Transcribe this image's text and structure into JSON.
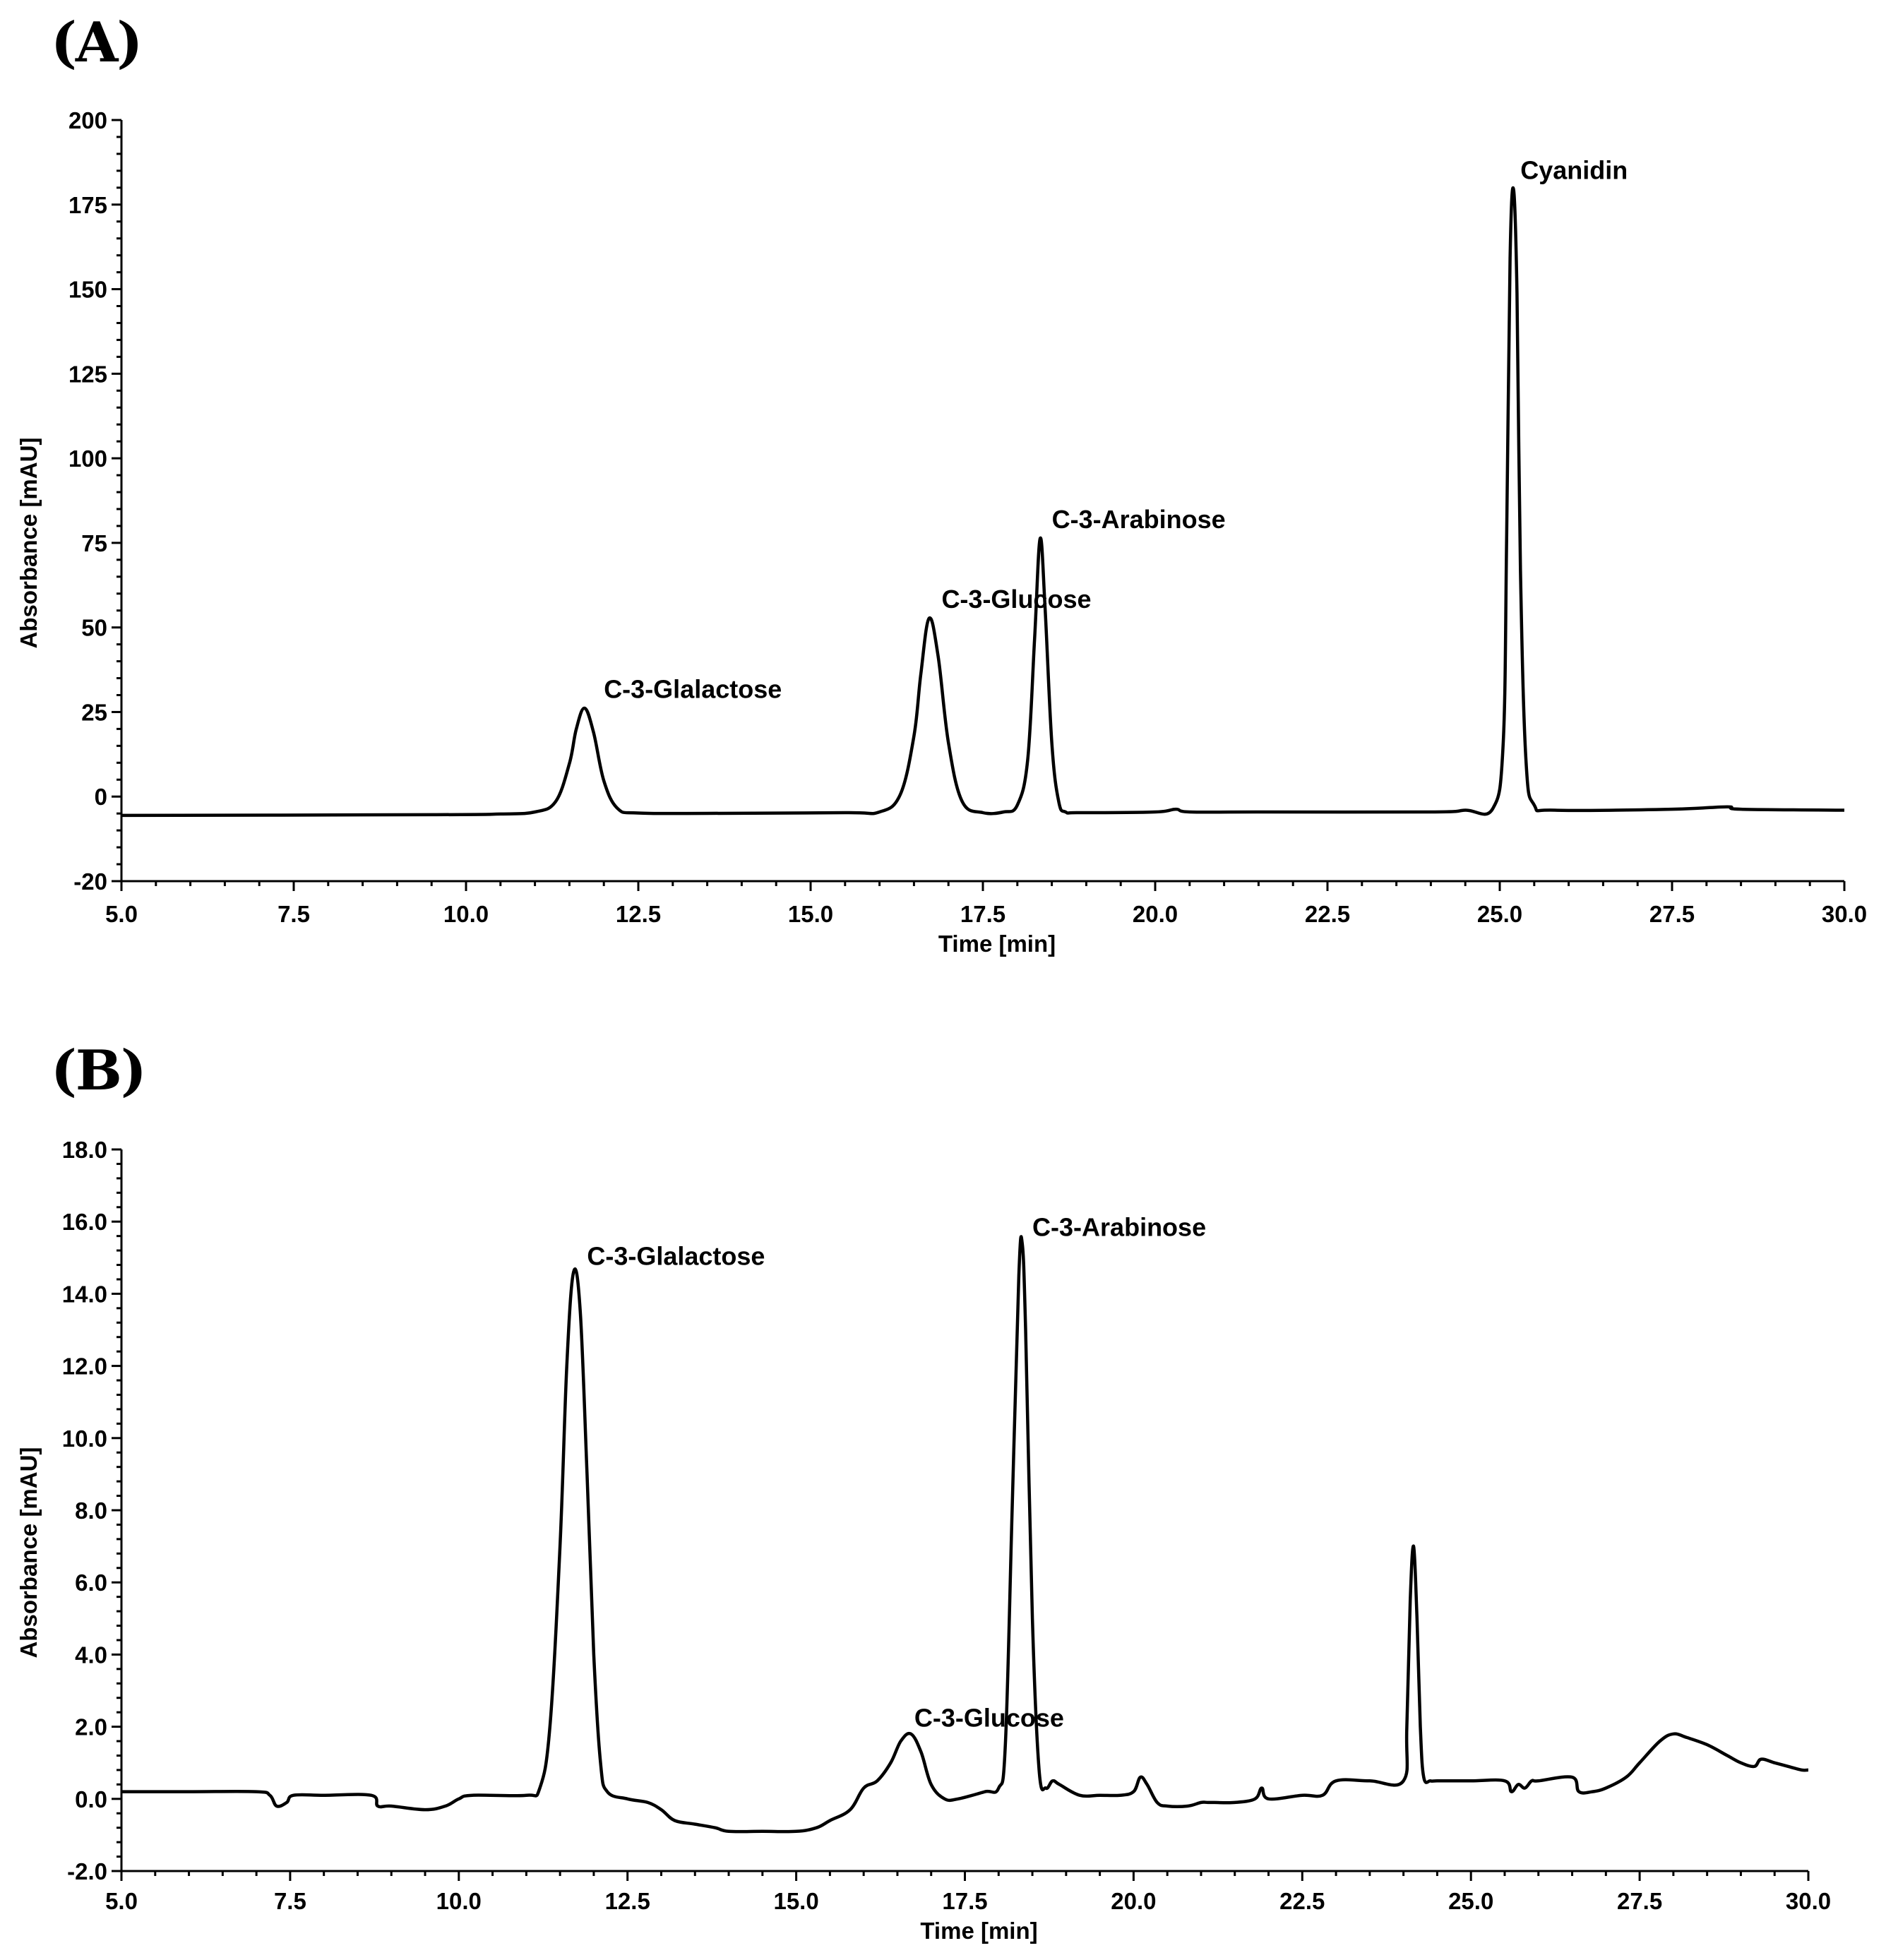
{
  "chart_data": [
    {
      "panel_label": "(A)",
      "type": "line",
      "xlabel": "Time [min]",
      "ylabel": "Absorbance [mAU]",
      "xlim": [
        5.0,
        30.0
      ],
      "ylim": [
        -20,
        200
      ],
      "xticks": [
        "5.0",
        "7.5",
        "10.0",
        "12.5",
        "15.0",
        "17.5",
        "20.0",
        "22.5",
        "25.0",
        "27.5",
        "30.0"
      ],
      "yticks": [
        "-20",
        "0",
        "25",
        "50",
        "75",
        "100",
        "125",
        "150",
        "175",
        "200"
      ],
      "series": [
        {
          "x": [
            5.0,
            9.5,
            10.5,
            11.0,
            11.3,
            11.5,
            11.6,
            11.72,
            11.85,
            12.0,
            12.2,
            12.5,
            13.5,
            15.5,
            16.0,
            16.3,
            16.5,
            16.6,
            16.72,
            16.85,
            17.0,
            17.2,
            17.5,
            17.8,
            18.0,
            18.15,
            18.25,
            18.33,
            18.4,
            18.5,
            18.6,
            18.7,
            18.9,
            20.0,
            20.3,
            20.5,
            21.5,
            24.0,
            24.5,
            24.9,
            25.05,
            25.1,
            25.15,
            25.2,
            25.25,
            25.3,
            25.38,
            25.5,
            25.8,
            27.5,
            28.3,
            28.5,
            30.0
          ],
          "y": [
            -1,
            -0.8,
            -0.6,
            0,
            3,
            14,
            24,
            30,
            23,
            9,
            1,
            -0.3,
            -0.4,
            -0.2,
            0,
            5,
            22,
            40,
            56,
            45,
            20,
            3,
            -0.2,
            0,
            2,
            15,
            50,
            79,
            60,
            20,
            3,
            0,
            -0.2,
            0,
            0.8,
            0,
            0,
            0,
            0.5,
            1,
            20,
            80,
            160,
            180,
            150,
            70,
            15,
            2,
            0.5,
            0.8,
            1.5,
            0.8,
            0.5
          ]
        }
      ],
      "annotations": [
        {
          "text": "C-3-Glalactose",
          "x": 12.0,
          "y": 33
        },
        {
          "text": "C-3-Glucose",
          "x": 16.9,
          "y": 59
        },
        {
          "text": "C-3-Arabinose",
          "x": 18.5,
          "y": 82
        },
        {
          "text": "Cyanidin",
          "x": 25.3,
          "y": 183
        }
      ],
      "grid": false
    },
    {
      "panel_label": "(B)",
      "type": "line",
      "xlabel": "Time [min]",
      "ylabel": "Absorbance [mAU]",
      "xlim": [
        5.0,
        30.0
      ],
      "ylim": [
        -2.0,
        18.0
      ],
      "xticks": [
        "5.0",
        "7.5",
        "10.0",
        "12.5",
        "15.0",
        "17.5",
        "20.0",
        "22.5",
        "25.0",
        "27.5",
        "30.0"
      ],
      "yticks": [
        "-2.0",
        "0.0",
        "2.0",
        "4.0",
        "6.0",
        "8.0",
        "10.0",
        "12.0",
        "14.0",
        "16.0",
        "18.0"
      ],
      "series": [
        {
          "x": [
            5.0,
            6.0,
            7.0,
            7.2,
            7.3,
            7.45,
            7.55,
            8.0,
            8.7,
            8.8,
            9.0,
            9.5,
            9.8,
            10.0,
            10.2,
            11.0,
            11.2,
            11.35,
            11.5,
            11.6,
            11.7,
            11.8,
            11.9,
            12.0,
            12.1,
            12.2,
            12.5,
            12.8,
            13.0,
            13.2,
            13.5,
            13.8,
            14.0,
            14.5,
            15.0,
            15.3,
            15.5,
            15.8,
            16.0,
            16.2,
            16.4,
            16.55,
            16.7,
            16.85,
            17.0,
            17.2,
            17.4,
            17.8,
            18.0,
            18.1,
            18.2,
            18.3,
            18.35,
            18.4,
            18.5,
            18.6,
            18.7,
            18.8,
            18.9,
            19.2,
            19.5,
            19.8,
            20.0,
            20.1,
            20.2,
            20.35,
            20.5,
            20.8,
            21.0,
            21.1,
            21.2,
            21.5,
            21.8,
            21.9,
            22.0,
            22.5,
            22.8,
            23.0,
            23.5,
            24.0,
            24.05,
            24.1,
            24.15,
            24.2,
            24.25,
            24.3,
            24.4,
            24.5,
            25.0,
            25.5,
            25.6,
            25.7,
            25.8,
            25.9,
            26.0,
            26.5,
            26.6,
            26.8,
            27.0,
            27.3,
            27.5,
            27.8,
            28.0,
            28.2,
            28.5,
            28.8,
            29.0,
            29.2,
            29.3,
            29.5,
            29.7,
            29.9,
            30.0
          ],
          "y": [
            0.2,
            0.2,
            0.2,
            0.1,
            -0.2,
            -0.1,
            0.1,
            0.1,
            0.1,
            -0.2,
            -0.2,
            -0.3,
            -0.2,
            0.0,
            0.1,
            0.1,
            0.3,
            2.0,
            7.0,
            12.0,
            14.6,
            13.5,
            9.0,
            4.0,
            1.0,
            0.2,
            0.0,
            -0.1,
            -0.3,
            -0.6,
            -0.7,
            -0.8,
            -0.9,
            -0.9,
            -0.9,
            -0.8,
            -0.6,
            -0.3,
            0.3,
            0.5,
            1.0,
            1.6,
            1.8,
            1.3,
            0.4,
            0.0,
            0.0,
            0.2,
            0.3,
            1.5,
            8.0,
            14.5,
            15.4,
            13.0,
            5.0,
            0.8,
            0.3,
            0.5,
            0.4,
            0.1,
            0.1,
            0.1,
            0.2,
            0.6,
            0.4,
            -0.1,
            -0.2,
            -0.2,
            -0.1,
            -0.1,
            -0.1,
            -0.1,
            0.0,
            0.3,
            0.0,
            0.1,
            0.1,
            0.5,
            0.5,
            0.5,
            2.0,
            5.5,
            7.0,
            5.0,
            2.0,
            0.6,
            0.5,
            0.5,
            0.5,
            0.5,
            0.2,
            0.4,
            0.3,
            0.5,
            0.5,
            0.6,
            0.2,
            0.2,
            0.3,
            0.6,
            1.0,
            1.6,
            1.8,
            1.7,
            1.5,
            1.2,
            1.0,
            0.9,
            1.1,
            1.0,
            0.9,
            0.8,
            0.8
          ]
        }
      ],
      "annotations": [
        {
          "text": "C-3-Glalactose",
          "x": 11.9,
          "y": 14.8
        },
        {
          "text": "C-3-Arabinose",
          "x": 18.5,
          "y": 15.6
        },
        {
          "text": "C-3-Glucose",
          "x": 16.75,
          "y": 2.0
        }
      ],
      "grid": false
    }
  ]
}
